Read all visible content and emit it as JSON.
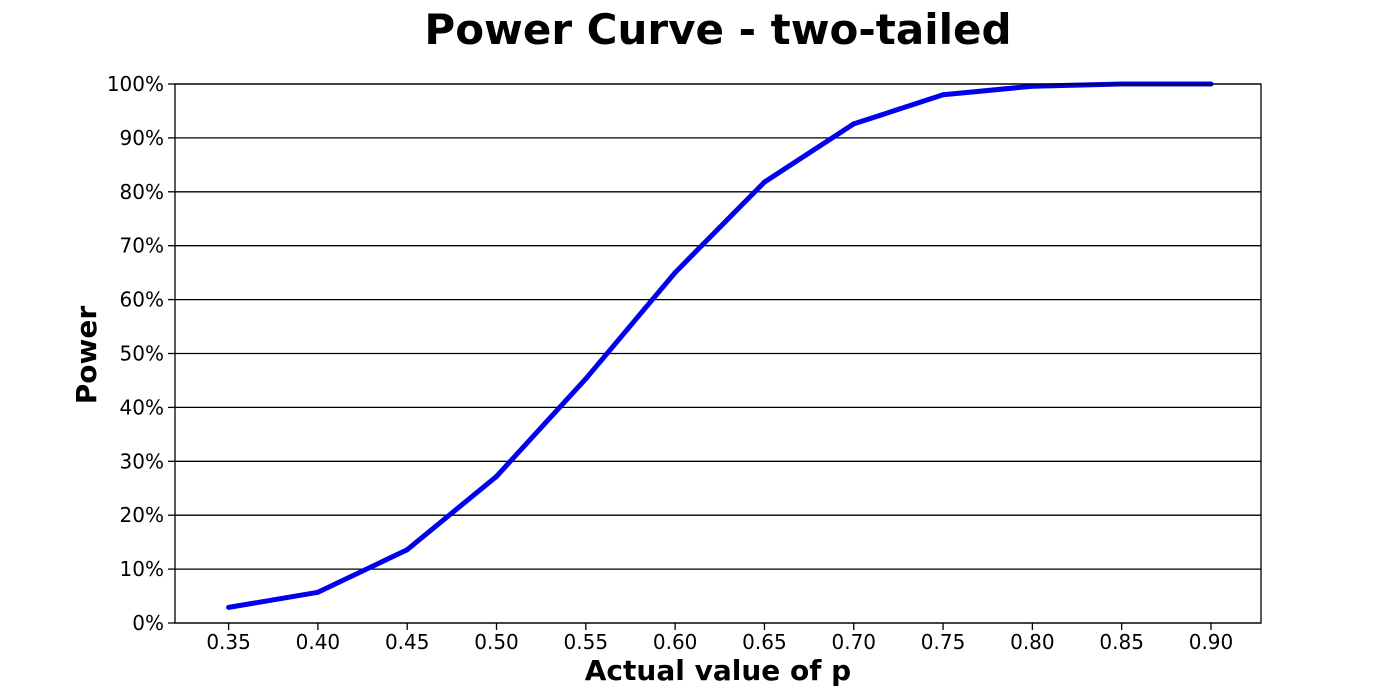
{
  "chart_data": {
    "type": "line",
    "title": "Power Curve - two-tailed",
    "xlabel": "Actual value of p",
    "ylabel": "Power",
    "x": [
      0.35,
      0.4,
      0.45,
      0.5,
      0.55,
      0.6,
      0.65,
      0.7,
      0.75,
      0.8,
      0.85,
      0.9
    ],
    "x_tick_labels": [
      "0.35",
      "0.40",
      "0.45",
      "0.50",
      "0.55",
      "0.60",
      "0.65",
      "0.70",
      "0.75",
      "0.80",
      "0.85",
      "0.90"
    ],
    "y_ticks": [
      0,
      10,
      20,
      30,
      40,
      50,
      60,
      70,
      80,
      90,
      100
    ],
    "y_tick_labels": [
      "0%",
      "10%",
      "20%",
      "30%",
      "40%",
      "50%",
      "60%",
      "70%",
      "80%",
      "90%",
      "100%"
    ],
    "xlim": [
      0.32,
      0.928
    ],
    "ylim": [
      0,
      100
    ],
    "grid": "horizontal",
    "series": [
      {
        "values": [
          2.9,
          5.7,
          13.6,
          27.2,
          45.3,
          65.0,
          81.8,
          92.6,
          98.0,
          99.6,
          100.0,
          100.0
        ],
        "color": "#0000ee"
      }
    ]
  }
}
